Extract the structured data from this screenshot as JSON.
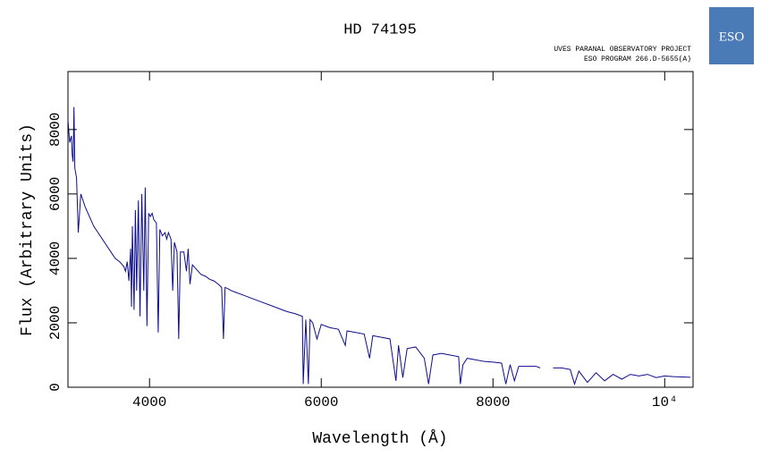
{
  "chart_data": {
    "type": "line",
    "title": "HD 74195",
    "subtitle": [
      "UVES PARANAL OBSERVATORY PROJECT",
      "ESO PROGRAM 266.D-5655(A)"
    ],
    "logo": "ESO",
    "x_label": "Wavelength (Å)",
    "y_label": "Flux (Arbitrary Units)",
    "xlim": [
      3050,
      10330
    ],
    "ylim": [
      0,
      9800
    ],
    "xticks": [
      4000,
      6000,
      8000,
      {
        "value": 10000,
        "label": "10⁴"
      }
    ],
    "yticks": [
      0,
      2000,
      4000,
      6000,
      8000
    ],
    "x": [
      3050,
      3070,
      3090,
      3100,
      3110,
      3120,
      3130,
      3150,
      3170,
      3200,
      3250,
      3300,
      3350,
      3400,
      3450,
      3500,
      3550,
      3600,
      3650,
      3700,
      3720,
      3740,
      3760,
      3780,
      3790,
      3800,
      3820,
      3835,
      3850,
      3870,
      3889,
      3910,
      3933,
      3950,
      3970,
      3990,
      4010,
      4030,
      4050,
      4080,
      4101,
      4120,
      4150,
      4180,
      4200,
      4220,
      4250,
      4270,
      4290,
      4320,
      4340,
      4360,
      4400,
      4430,
      4450,
      4471,
      4500,
      4550,
      4600,
      4650,
      4700,
      4750,
      4800,
      4840,
      4861,
      4880,
      4920,
      4950,
      5000,
      5100,
      5200,
      5300,
      5400,
      5500,
      5600,
      5700,
      5780,
      5790,
      5820,
      5850,
      5870,
      5900,
      5950,
      6000,
      6100,
      6200,
      6280,
      6300,
      6400,
      6500,
      6563,
      6600,
      6700,
      6800,
      6870,
      6900,
      6950,
      7000,
      7100,
      7200,
      7250,
      7300,
      7400,
      7500,
      7600,
      7620,
      7650,
      7700,
      7800,
      7900,
      8000,
      8100,
      8150,
      8200,
      8250,
      8300,
      8400,
      8500,
      8550,
      8600,
      8700,
      8800,
      8900,
      8950,
      9000,
      9100,
      9200,
      9300,
      9400,
      9500,
      9600,
      9700,
      9800,
      9900,
      10000,
      10100,
      10200,
      10300
    ],
    "series": [
      {
        "color": "#0d0d8c",
        "values": [
          8300,
          7600,
          7800,
          7200,
          7000,
          8700,
          6800,
          6500,
          4800,
          6000,
          5600,
          5300,
          5000,
          4800,
          4600,
          4400,
          4200,
          4000,
          3900,
          3750,
          3600,
          3900,
          3300,
          4300,
          2500,
          5000,
          2400,
          5500,
          3000,
          5800,
          2200,
          6000,
          3000,
          6200,
          1900,
          5400,
          5300,
          5400,
          5200,
          5100,
          1700,
          4900,
          4700,
          4800,
          4600,
          4800,
          4600,
          3000,
          4500,
          4200,
          1500,
          4200,
          4200,
          3600,
          4300,
          3200,
          3800,
          3650,
          3500,
          3450,
          3350,
          3300,
          3200,
          3100,
          1500,
          3100,
          3050,
          3000,
          2950,
          2850,
          2750,
          2650,
          2550,
          2450,
          2350,
          2280,
          2200,
          100,
          2100,
          100,
          2100,
          2000,
          1500,
          1950,
          1850,
          1800,
          1300,
          1750,
          1700,
          1650,
          900,
          1600,
          1550,
          1500,
          200,
          1300,
          300,
          1200,
          1250,
          900,
          100,
          1000,
          1050,
          1000,
          950,
          100,
          700,
          900,
          850,
          800,
          780,
          750,
          100,
          700,
          200,
          650,
          650,
          650,
          600,
          null,
          600,
          600,
          550,
          100,
          500,
          150,
          450,
          200,
          400,
          250,
          400,
          350,
          400,
          300,
          350,
          330,
          320,
          310
        ]
      }
    ]
  }
}
